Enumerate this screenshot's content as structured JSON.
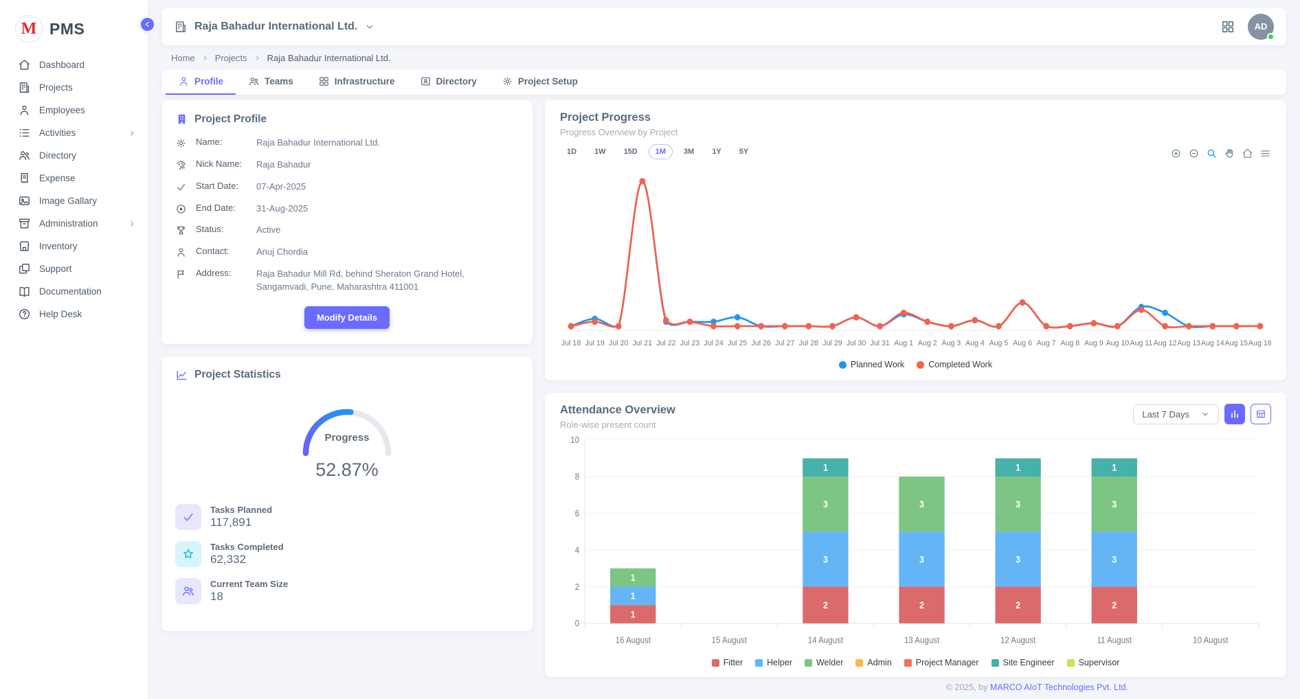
{
  "app": {
    "logo_letter": "M",
    "logo_text": "PMS",
    "footer_prefix": "© 2025, by ",
    "footer_company": "MARCO AIoT Technologies Pvt. Ltd."
  },
  "sidebar": {
    "items": [
      {
        "label": "Dashboard",
        "icon": "home"
      },
      {
        "label": "Projects",
        "icon": "building"
      },
      {
        "label": "Employees",
        "icon": "person"
      },
      {
        "label": "Activities",
        "icon": "list",
        "chevron": true
      },
      {
        "label": "Directory",
        "icon": "people"
      },
      {
        "label": "Expense",
        "icon": "receipt"
      },
      {
        "label": "Image Gallary",
        "icon": "image"
      },
      {
        "label": "Administration",
        "icon": "archive",
        "chevron": true
      },
      {
        "label": "Inventory",
        "icon": "store"
      },
      {
        "label": "Support",
        "icon": "copy"
      },
      {
        "label": "Documentation",
        "icon": "book"
      },
      {
        "label": "Help Desk",
        "icon": "help"
      }
    ]
  },
  "topbar": {
    "company": "Raja Bahadur International Ltd.",
    "avatar_initials": "AD"
  },
  "breadcrumb": [
    "Home",
    "Projects",
    "Raja Bahadur International Ltd."
  ],
  "tabs": [
    {
      "label": "Profile",
      "icon": "person",
      "active": true
    },
    {
      "label": "Teams",
      "icon": "people",
      "active": false
    },
    {
      "label": "Infrastructure",
      "icon": "grid",
      "active": false
    },
    {
      "label": "Directory",
      "icon": "idcard",
      "active": false
    },
    {
      "label": "Project Setup",
      "icon": "gear",
      "active": false
    }
  ],
  "profile": {
    "title": "Project Profile",
    "fields": [
      {
        "icon": "gear",
        "label": "Name:",
        "value": "Raja Bahadur International Ltd."
      },
      {
        "icon": "fingerprint",
        "label": "Nick Name:",
        "value": "Raja Bahadur"
      },
      {
        "icon": "check",
        "label": "Start Date:",
        "value": "07-Apr-2025"
      },
      {
        "icon": "circle-dot",
        "label": "End Date:",
        "value": "31-Aug-2025"
      },
      {
        "icon": "trophy",
        "label": "Status:",
        "value": "Active"
      },
      {
        "icon": "person",
        "label": "Contact:",
        "value": "Anuj Chordia"
      },
      {
        "icon": "flag",
        "label": "Address:",
        "value": "Raja Bahadur Mill Rd, behind Sheraton Grand Hotel, Sangamvadi, Pune, Maharashtra 411001"
      }
    ],
    "button": "Modify Details"
  },
  "stats": {
    "title": "Project Statistics",
    "gauge_label": "Progress",
    "progress_pct": 52.87,
    "progress_display": "52.87%",
    "gauge_colors": {
      "start": "#6c5ffc",
      "end": "#2196f3",
      "track": "#e7e8ee"
    },
    "items": [
      {
        "icon": "check",
        "tint": "purple",
        "label": "Tasks Planned",
        "value": "117,891"
      },
      {
        "icon": "star",
        "tint": "cyan",
        "label": "Tasks Completed",
        "value": "62,332"
      },
      {
        "icon": "people",
        "tint": "purple",
        "label": "Current Team Size",
        "value": "18"
      }
    ]
  },
  "progress_card": {
    "title": "Project Progress",
    "subtitle": "Progress Overview by Project",
    "ranges": [
      "1D",
      "1W",
      "15D",
      "1M",
      "3M",
      "1Y",
      "5Y"
    ],
    "active_range": "1M",
    "toolbar_icons": [
      "zoom-in",
      "zoom-out",
      "magnifier",
      "hand",
      "home",
      "menu"
    ]
  },
  "attendance_card": {
    "title": "Attendance Overview",
    "subtitle": "Role-wise present count",
    "filter_value": "Last 7 Days"
  },
  "chart_data": [
    {
      "type": "line",
      "title": "Project Progress",
      "x": [
        "Jul 18",
        "Jul 19",
        "Jul 20",
        "Jul 21",
        "Jul 22",
        "Jul 23",
        "Jul 24",
        "Jul 25",
        "Jul 26",
        "Jul 27",
        "Jul 28",
        "Jul 29",
        "Jul 30",
        "Jul 31",
        "Aug 1",
        "Aug 2",
        "Aug 3",
        "Aug 4",
        "Aug 5",
        "Aug 6",
        "Aug 7",
        "Aug 8",
        "Aug 9",
        "Aug 10",
        "Aug 11",
        "Aug 12",
        "Aug 13",
        "Aug 14",
        "Aug 15",
        "Aug 16"
      ],
      "series": [
        {
          "name": "Planned Work",
          "color": "#2196f3",
          "values": [
            2,
            7,
            2,
            100,
            5,
            5,
            5,
            8,
            2,
            2,
            2,
            2,
            8,
            2,
            10,
            5,
            2,
            6,
            2,
            18,
            2,
            2,
            4,
            2,
            15,
            11,
            2,
            2,
            2,
            2
          ]
        },
        {
          "name": "Completed Work",
          "color": "#f4614d",
          "values": [
            2,
            5,
            2,
            100,
            6,
            5,
            2,
            2,
            2,
            2,
            2,
            2,
            8,
            2,
            11,
            5,
            2,
            6,
            2,
            18,
            2,
            2,
            4,
            2,
            13,
            2,
            2,
            2,
            2,
            2
          ]
        }
      ],
      "ylim": [
        0,
        105
      ],
      "grid": false,
      "legend_position": "bottom"
    },
    {
      "type": "bar",
      "stacked": true,
      "title": "Attendance Overview",
      "categories": [
        "16 August",
        "15 August",
        "14 August",
        "13 August",
        "12 August",
        "11 August",
        "10 August"
      ],
      "series": [
        {
          "name": "Fitter",
          "color": "#db6a6a",
          "values": [
            1,
            0,
            2,
            2,
            2,
            2,
            0
          ]
        },
        {
          "name": "Helper",
          "color": "#64b5f6",
          "values": [
            1,
            0,
            3,
            3,
            3,
            3,
            0
          ]
        },
        {
          "name": "Welder",
          "color": "#7cc583",
          "values": [
            1,
            0,
            3,
            3,
            3,
            3,
            0
          ]
        },
        {
          "name": "Admin",
          "color": "#f7b84b",
          "values": [
            0,
            0,
            0,
            0,
            0,
            0,
            0
          ]
        },
        {
          "name": "Project Manager",
          "color": "#f0735a",
          "values": [
            0,
            0,
            0,
            0,
            0,
            0,
            0
          ]
        },
        {
          "name": "Site Engineer",
          "color": "#45b1a8",
          "values": [
            0,
            0,
            1,
            0,
            1,
            1,
            0
          ]
        },
        {
          "name": "Supervisor",
          "color": "#d3dd58",
          "values": [
            0,
            0,
            0,
            0,
            0,
            0,
            0
          ]
        }
      ],
      "ylim": [
        0,
        10
      ],
      "yticks": [
        0,
        2,
        4,
        6,
        8,
        10
      ],
      "grid": true,
      "legend_position": "bottom"
    }
  ]
}
